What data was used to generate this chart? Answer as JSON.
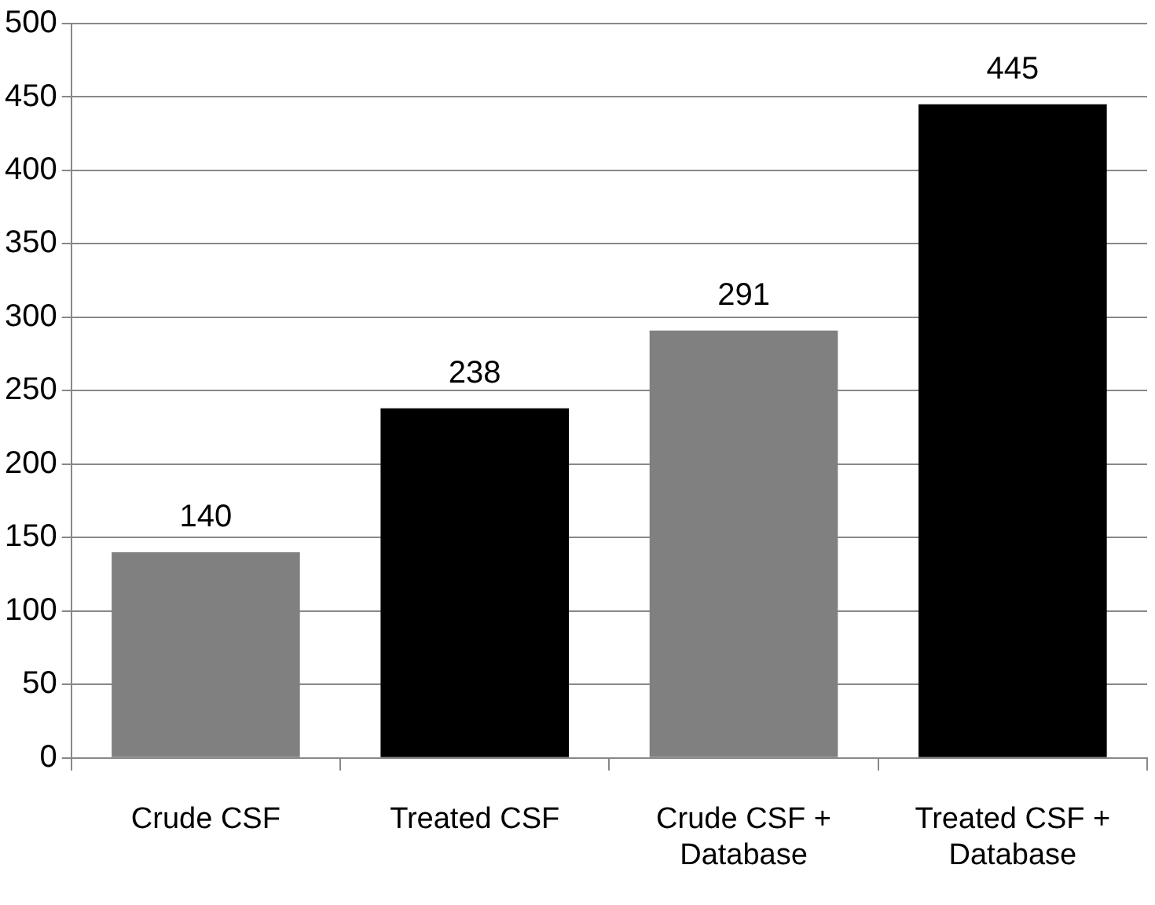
{
  "chart_data": {
    "type": "bar",
    "categories": [
      "Crude CSF",
      "Treated CSF",
      "Crude CSF + Database",
      "Treated CSF + Database"
    ],
    "values": [
      140,
      238,
      291,
      445
    ],
    "colors": [
      "#808080",
      "#000000",
      "#808080",
      "#000000"
    ],
    "ylim": [
      0,
      500
    ],
    "yticks": [
      0,
      50,
      100,
      150,
      200,
      250,
      300,
      350,
      400,
      450,
      500
    ],
    "grid": "y",
    "legend": false,
    "data_labels": true
  }
}
